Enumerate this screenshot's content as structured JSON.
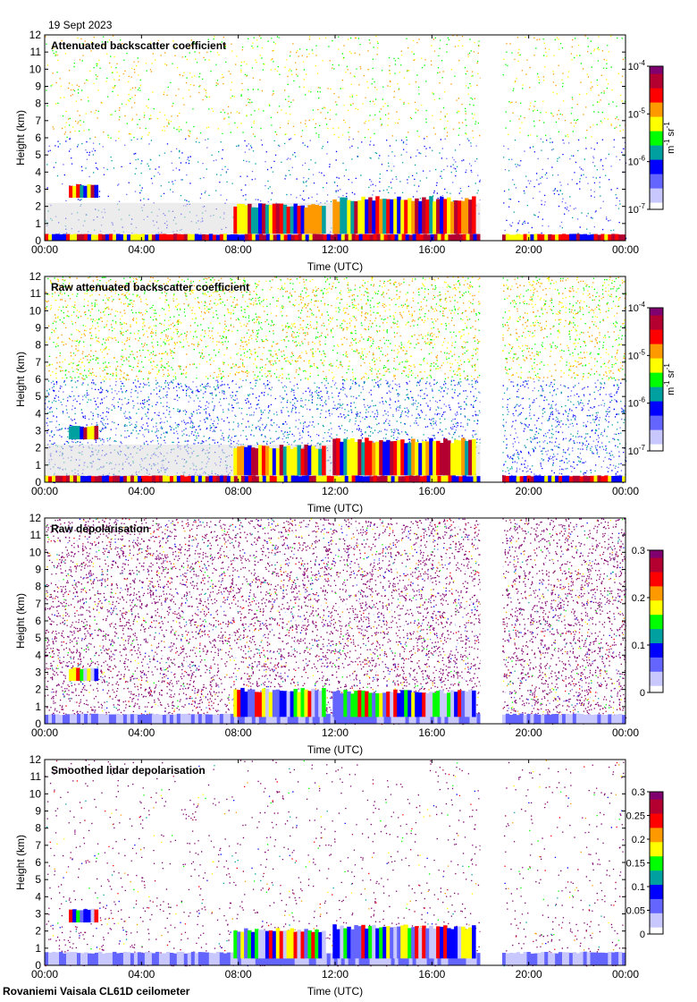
{
  "header": {
    "date": "19 Sept 2023"
  },
  "footer": {
    "site": "Rovaniemi Vaisala CL61D ceilometer"
  },
  "colors": {
    "ink": "#000000",
    "missing": "#ffffff",
    "background_grey": "#dcdcdc",
    "colormap": [
      "#ffffff",
      "#c8c8ff",
      "#6464ff",
      "#0000ff",
      "#00a0a0",
      "#00ff00",
      "#ffff00",
      "#ff9900",
      "#ff0000",
      "#b40030",
      "#800070"
    ]
  },
  "chart_data": [
    {
      "type": "heatmap",
      "title": "Attenuated backscatter coefficient",
      "xlabel": "Time (UTC)",
      "ylabel": "Height (km)",
      "x_ticks": [
        "00:00",
        "04:00",
        "08:00",
        "12:00",
        "16:00",
        "20:00",
        "00:00"
      ],
      "y_ticks": [
        "0",
        "1",
        "2",
        "3",
        "4",
        "5",
        "6",
        "7",
        "8",
        "9",
        "10",
        "11",
        "12"
      ],
      "xlim_hours": [
        0,
        24
      ],
      "ylim_km": [
        0,
        12
      ],
      "data_gap_hours": [
        18.0,
        18.9
      ],
      "colorbar": {
        "scale": "log",
        "range": [
          1e-07,
          0.0001
        ],
        "unit": "m-1 sr-1",
        "ticks": [
          "10-7",
          "10-6",
          "10-5",
          "10-4"
        ]
      },
      "features": [
        {
          "name": "surface layer",
          "t_start": 0.0,
          "t_end": 24.0,
          "base_km": 0.0,
          "top_km": 0.4
        },
        {
          "name": "cloud 1",
          "t_start": 1.0,
          "t_end": 2.2,
          "base_km": 2.5,
          "top_km": 3.3
        },
        {
          "name": "cloud 2",
          "t_start": 7.8,
          "t_end": 11.6,
          "base_km": 0.4,
          "top_km": 2.2
        },
        {
          "name": "cloud 3",
          "t_start": 11.9,
          "t_end": 17.8,
          "base_km": 0.4,
          "top_km": 2.6
        }
      ]
    },
    {
      "type": "heatmap",
      "title": "Raw attenuated backscatter coefficient",
      "xlabel": "Time (UTC)",
      "ylabel": "Height (km)",
      "x_ticks": [
        "00:00",
        "04:00",
        "08:00",
        "12:00",
        "16:00",
        "20:00",
        "00:00"
      ],
      "y_ticks": [
        "0",
        "1",
        "2",
        "3",
        "4",
        "5",
        "6",
        "7",
        "8",
        "9",
        "10",
        "11",
        "12"
      ],
      "xlim_hours": [
        0,
        24
      ],
      "ylim_km": [
        0,
        12
      ],
      "data_gap_hours": [
        18.0,
        18.9
      ],
      "colorbar": {
        "scale": "log",
        "range": [
          1e-07,
          0.0001
        ],
        "unit": "m-1 sr-1",
        "ticks": [
          "10-7",
          "10-6",
          "10-5",
          "10-4"
        ]
      },
      "features": [
        {
          "name": "surface layer",
          "t_start": 0.0,
          "t_end": 24.0,
          "base_km": 0.0,
          "top_km": 0.4
        },
        {
          "name": "cloud 1",
          "t_start": 1.0,
          "t_end": 2.2,
          "base_km": 2.5,
          "top_km": 3.3
        },
        {
          "name": "cloud 2",
          "t_start": 7.8,
          "t_end": 11.6,
          "base_km": 0.4,
          "top_km": 2.2
        },
        {
          "name": "cloud 3",
          "t_start": 11.9,
          "t_end": 17.8,
          "base_km": 0.4,
          "top_km": 2.6
        }
      ]
    },
    {
      "type": "heatmap",
      "title": "Raw depolarisation",
      "xlabel": "Time (UTC)",
      "ylabel": "Height (km)",
      "x_ticks": [
        "00:00",
        "04:00",
        "08:00",
        "12:00",
        "16:00",
        "20:00",
        "00:00"
      ],
      "y_ticks": [
        "0",
        "1",
        "2",
        "3",
        "4",
        "5",
        "6",
        "7",
        "8",
        "9",
        "10",
        "11",
        "12"
      ],
      "xlim_hours": [
        0,
        24
      ],
      "ylim_km": [
        0,
        12
      ],
      "data_gap_hours": [
        18.0,
        18.9
      ],
      "colorbar": {
        "scale": "linear",
        "range": [
          0,
          0.3
        ],
        "ticks": [
          "0",
          "0.1",
          "0.2",
          "0.3"
        ]
      },
      "features": [
        {
          "name": "surface layer",
          "t_start": 0.0,
          "t_end": 24.0,
          "base_km": 0.0,
          "top_km": 0.6
        },
        {
          "name": "cloud 1",
          "t_start": 1.0,
          "t_end": 2.2,
          "base_km": 2.5,
          "top_km": 3.3
        },
        {
          "name": "cloud 2",
          "t_start": 7.8,
          "t_end": 11.6,
          "base_km": 0.4,
          "top_km": 2.1
        },
        {
          "name": "cloud 3",
          "t_start": 11.9,
          "t_end": 17.8,
          "base_km": 0.4,
          "top_km": 2.0
        }
      ]
    },
    {
      "type": "heatmap",
      "title": "Smoothed lidar depolarisation",
      "xlabel": "Time (UTC)",
      "ylabel": "Height (km)",
      "x_ticks": [
        "00:00",
        "04:00",
        "08:00",
        "12:00",
        "16:00",
        "20:00",
        "00:00"
      ],
      "y_ticks": [
        "0",
        "1",
        "2",
        "3",
        "4",
        "5",
        "6",
        "7",
        "8",
        "9",
        "10",
        "11",
        "12"
      ],
      "xlim_hours": [
        0,
        24
      ],
      "ylim_km": [
        0,
        12
      ],
      "data_gap_hours": [
        18.0,
        18.9
      ],
      "colorbar": {
        "scale": "linear",
        "range": [
          0,
          0.3
        ],
        "ticks": [
          "0",
          "0.05",
          "0.1",
          "0.15",
          "0.2",
          "0.25",
          "0.3"
        ]
      },
      "features": [
        {
          "name": "surface layer",
          "t_start": 0.0,
          "t_end": 24.0,
          "base_km": 0.0,
          "top_km": 0.8
        },
        {
          "name": "cloud 1",
          "t_start": 1.0,
          "t_end": 2.2,
          "base_km": 2.5,
          "top_km": 3.3
        },
        {
          "name": "cloud 2",
          "t_start": 7.8,
          "t_end": 11.6,
          "base_km": 0.4,
          "top_km": 2.2
        },
        {
          "name": "cloud 3",
          "t_start": 11.9,
          "t_end": 17.8,
          "base_km": 0.4,
          "top_km": 2.4
        }
      ]
    }
  ]
}
